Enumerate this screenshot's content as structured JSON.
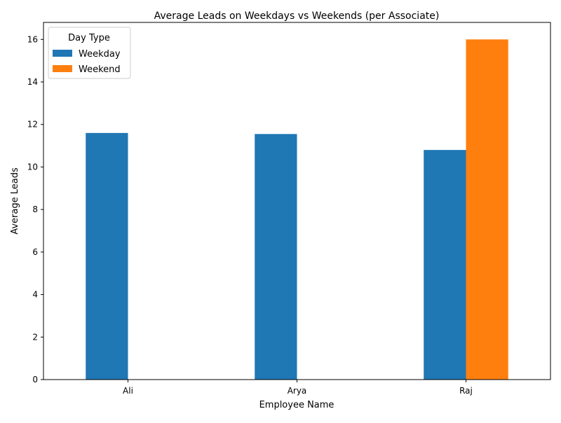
{
  "chart_data": {
    "type": "bar",
    "title": "Average Leads on Weekdays vs Weekends (per Associate)",
    "xlabel": "Employee Name",
    "ylabel": "Average Leads",
    "categories": [
      "Ali",
      "Arya",
      "Raj"
    ],
    "series": [
      {
        "name": "Weekday",
        "values": [
          11.6,
          11.55,
          10.8
        ],
        "color": "#1f77b4"
      },
      {
        "name": "Weekend",
        "values": [
          0,
          0,
          16.0
        ],
        "color": "#ff7f0e"
      }
    ],
    "ylim": [
      0,
      16.8
    ],
    "yticks": [
      0,
      2,
      4,
      6,
      8,
      10,
      12,
      14,
      16
    ],
    "grid": false,
    "legend": {
      "title": "Day Type",
      "placement": "top-left"
    }
  }
}
